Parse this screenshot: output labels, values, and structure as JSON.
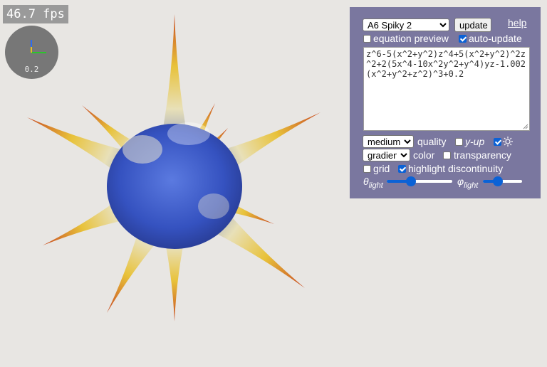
{
  "viewport": {
    "fps_text": "46.7 fps",
    "axes_gizmo": {
      "scale_text": "0.2",
      "axis_colors": {
        "x": "#2cc42c",
        "y": "#e8c020",
        "z": "#2e6cf0"
      }
    },
    "surface": {
      "name": "spiky-surface",
      "colors": [
        "#3552c0",
        "#e8e0b8",
        "#c84820"
      ]
    }
  },
  "panel": {
    "bg_color": "#7a779f",
    "surface_select": {
      "value": "A6 Spiky 2"
    },
    "update_label": "update",
    "help_label": "help",
    "equation_preview": {
      "label": "equation preview",
      "checked": false
    },
    "auto_update": {
      "label": "auto-update",
      "checked": true
    },
    "equation": "z^6-5(x^2+y^2)z^4+5(x^2+y^2)^2z^2+2(5x^4-10x^2y^2+y^4)yz-1.002(x^2+y^2+z^2)^3+0.2",
    "quality_select": {
      "value": "medium"
    },
    "quality_label": "quality",
    "y_up": {
      "label": "y-up",
      "checked": false
    },
    "sun": {
      "checked": true,
      "icon": "sun-icon"
    },
    "color_select": {
      "value": "gradient"
    },
    "color_label": "color",
    "transparency": {
      "label": "transparency",
      "checked": false
    },
    "grid": {
      "label": "grid",
      "checked": false
    },
    "highlight": {
      "label": "highlight discontinuity",
      "checked": true
    },
    "theta": {
      "label": "θ",
      "sub": "light",
      "fraction": 0.35
    },
    "phi": {
      "label": "φ",
      "sub": "light",
      "fraction": 0.35
    }
  }
}
